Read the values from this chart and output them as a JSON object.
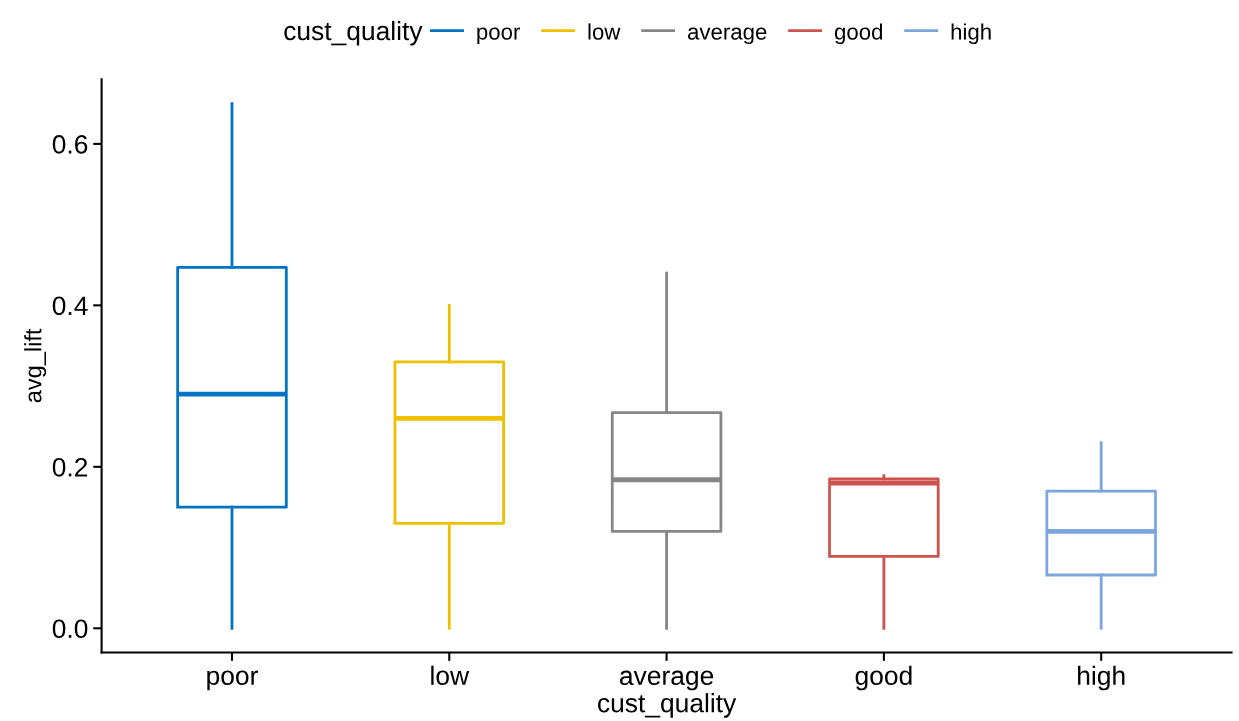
{
  "chart_data": {
    "type": "box",
    "xlabel": "cust_quality",
    "ylabel": "avg_lift",
    "legend_title": "cust_quality",
    "legend": "top",
    "categories": [
      "poor",
      "low",
      "average",
      "good",
      "high"
    ],
    "series": [
      {
        "name": "poor",
        "color": "#0073c2",
        "boxes": [
          {
            "low": 0.0,
            "q1": 0.15,
            "median": 0.29,
            "q3": 0.447,
            "high": 0.65
          },
          null,
          null,
          null,
          null
        ]
      },
      {
        "name": "low",
        "color": "#efc000",
        "boxes": [
          null,
          {
            "low": 0.0,
            "q1": 0.13,
            "median": 0.26,
            "q3": 0.33,
            "high": 0.4
          },
          null,
          null,
          null
        ]
      },
      {
        "name": "average",
        "color": "#868686",
        "boxes": [
          null,
          null,
          {
            "low": 0.0,
            "q1": 0.12,
            "median": 0.184,
            "q3": 0.267,
            "high": 0.44
          },
          null,
          null
        ]
      },
      {
        "name": "good",
        "color": "#cd534c",
        "boxes": [
          null,
          null,
          null,
          {
            "low": 0.0,
            "q1": 0.089,
            "median": 0.18,
            "q3": 0.185,
            "high": 0.189
          },
          null
        ]
      },
      {
        "name": "high",
        "color": "#7aa6dc",
        "boxes": [
          null,
          null,
          null,
          null,
          {
            "low": 0.0,
            "q1": 0.066,
            "median": 0.12,
            "q3": 0.17,
            "high": 0.23
          }
        ]
      }
    ],
    "ylim": [
      -0.03,
      0.68
    ],
    "yticks": [
      {
        "value": 0,
        "label": "0.0"
      },
      0.2,
      0.4,
      0.6
    ],
    "grid": false
  }
}
